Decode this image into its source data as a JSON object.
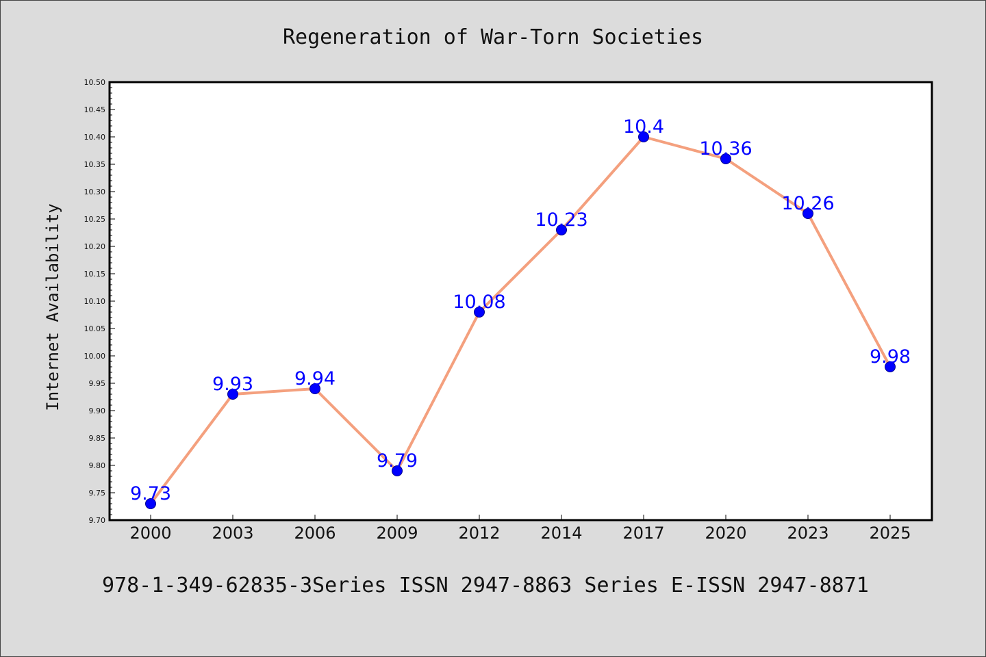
{
  "chart_data": {
    "type": "line",
    "title": "Regeneration of War-Torn Societies",
    "ylabel": "Internet Availability",
    "xlabel": "",
    "categories": [
      "2000",
      "2003",
      "2006",
      "2009",
      "2012",
      "2014",
      "2017",
      "2020",
      "2023",
      "2025"
    ],
    "values": [
      9.73,
      9.93,
      9.94,
      9.79,
      10.08,
      10.23,
      10.4,
      10.36,
      10.26,
      9.98
    ],
    "data_labels": [
      "9.73",
      "9.93",
      "9.94",
      "9.79",
      "10.08",
      "10.23",
      "10.4",
      "10.36",
      "10.26",
      "9.98"
    ],
    "ylim": [
      9.7,
      10.5
    ],
    "yticks": [
      "9.70",
      "9.75",
      "9.80",
      "9.85",
      "9.90",
      "9.95",
      "10.00",
      "10.05",
      "10.10",
      "10.15",
      "10.20",
      "10.25",
      "10.30",
      "10.35",
      "10.40",
      "10.45",
      "10.50"
    ],
    "grid": false,
    "legend": "none",
    "line_color": "#f4a07e",
    "marker_color": "#0000ff",
    "label_color": "#0000ff",
    "background_color": "#dcdcdc",
    "plot_background_color": "#ffffff"
  },
  "footer": {
    "text": "978-1-349-62835-3Series ISSN 2947-8863 Series E-ISSN 2947-8871"
  }
}
